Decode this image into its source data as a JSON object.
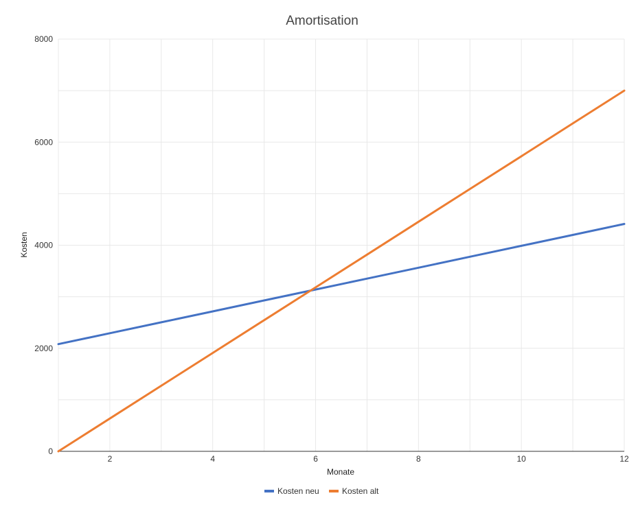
{
  "chart_data": {
    "type": "line",
    "title": "Amortisation",
    "xlabel": "Monate",
    "ylabel": "Kosten",
    "x": [
      1,
      2,
      3,
      4,
      5,
      6,
      7,
      8,
      9,
      10,
      11,
      12
    ],
    "xlim": [
      1,
      12
    ],
    "ylim": [
      0,
      8000
    ],
    "x_ticks": [
      2,
      4,
      6,
      8,
      10,
      12
    ],
    "y_ticks": [
      0,
      2000,
      4000,
      6000,
      8000
    ],
    "grid": true,
    "legend_position": "bottom",
    "series": [
      {
        "name": "Kosten neu",
        "color": "#4472c4",
        "values": [
          2080,
          2292,
          2504,
          2716,
          2928,
          3140,
          3352,
          3564,
          3776,
          3988,
          4200,
          4412
        ]
      },
      {
        "name": "Kosten alt",
        "color": "#ed7d31",
        "values": [
          0,
          636,
          1273,
          1909,
          2545,
          3182,
          3818,
          4455,
          5091,
          5727,
          6364,
          7000
        ]
      }
    ]
  }
}
